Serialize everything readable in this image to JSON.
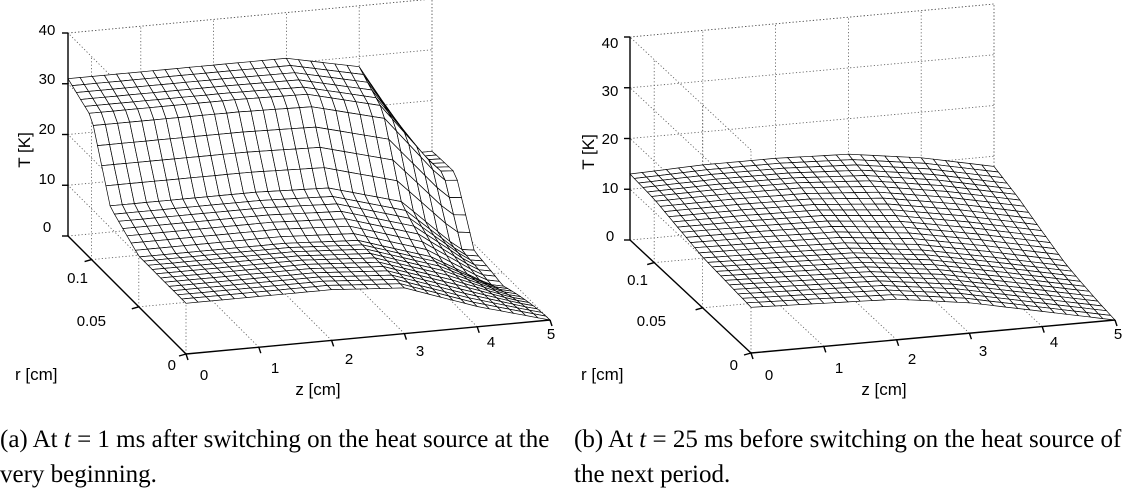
{
  "figures": [
    {
      "caption_label": "(a) At ",
      "caption_var": "t",
      "caption_rest": " = 1 ms after switching on the heat source at the very beginning.",
      "t_ms": 1
    },
    {
      "caption_label": "(b) At ",
      "caption_var": "t",
      "caption_rest": " = 25 ms before switching on the heat source of the next period.",
      "t_ms": 25
    }
  ],
  "chart_data": [
    {
      "type": "surface",
      "title": "",
      "xlabel": "z [cm]",
      "ylabel": "r [cm]",
      "zlabel": "T [K]",
      "xlim": [
        0,
        5
      ],
      "ylim": [
        0,
        0.125
      ],
      "zlim": [
        0,
        40
      ],
      "xticks": [
        "0",
        "1",
        "2",
        "3",
        "4",
        "5"
      ],
      "yticks": [
        "0",
        "0.05",
        "0.1"
      ],
      "zticks": [
        "0",
        "10",
        "20",
        "30",
        "40"
      ],
      "grid": true,
      "series": [
        {
          "T_at_z0_vs_r": {
            "r": [
              0,
              0.05,
              0.08,
              0.1,
              0.125
            ],
            "T": [
              10,
              10,
              14,
              28,
              31
            ]
          },
          "T_at_r0_vs_z": {
            "z": [
              0,
              2,
              3,
              4,
              5
            ],
            "T": [
              10,
              10,
              9,
              4,
              0
            ]
          },
          "T_at_rmax_vs_z": {
            "z": [
              0,
              1,
              2,
              3,
              4,
              4.8
            ],
            "T": [
              31,
              31,
              31,
              31,
              28,
              10
            ]
          }
        }
      ]
    },
    {
      "type": "surface",
      "title": "",
      "xlabel": "z [cm]",
      "ylabel": "r [cm]",
      "zlabel": "T [K]",
      "xlim": [
        0,
        5
      ],
      "ylim": [
        0,
        0.125
      ],
      "zlim": [
        0,
        40
      ],
      "xticks": [
        "0",
        "1",
        "2",
        "3",
        "4",
        "5"
      ],
      "yticks": [
        "0",
        "0.05",
        "0.1"
      ],
      "zticks": [
        "0",
        "10",
        "20",
        "30",
        "40"
      ],
      "grid": true,
      "series": [
        {
          "T_at_z0_vs_r": {
            "r": [
              0,
              0.05,
              0.1,
              0.125
            ],
            "T": [
              9,
              10,
              12.5,
              13
            ]
          },
          "T_at_r0_vs_z": {
            "z": [
              0,
              2,
              3,
              4,
              5
            ],
            "T": [
              9,
              8,
              6,
              3,
              0
            ]
          },
          "T_at_rmax_vs_z": {
            "z": [
              0,
              1,
              2,
              3,
              4,
              5
            ],
            "T": [
              13,
              13.5,
              13.5,
              13,
              11,
              8
            ]
          }
        }
      ]
    }
  ]
}
